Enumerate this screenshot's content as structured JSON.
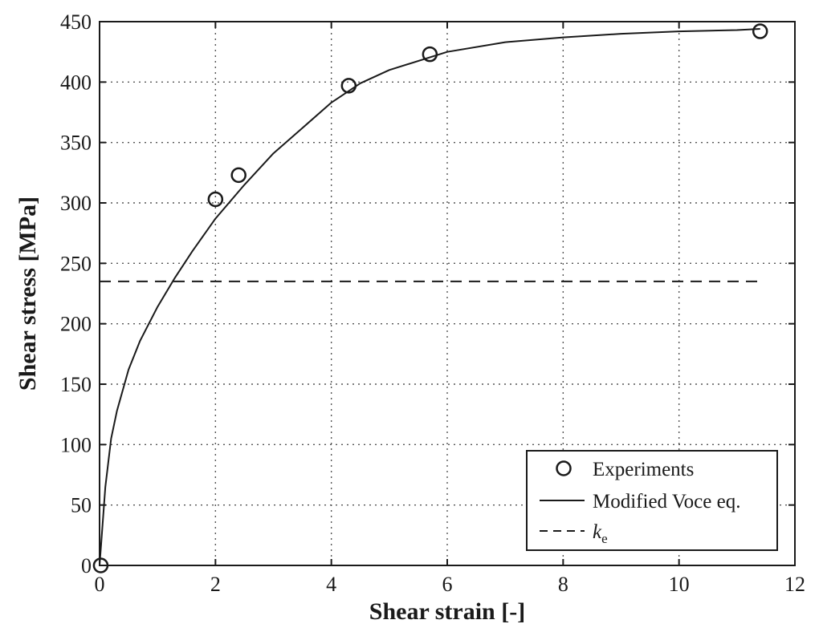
{
  "chart_data": {
    "type": "line",
    "title": "",
    "xlabel": "Shear strain [-]",
    "ylabel": "Shear stress [MPa]",
    "xlim": [
      0,
      12
    ],
    "ylim": [
      0,
      450
    ],
    "xticks": [
      0,
      2,
      4,
      6,
      8,
      10,
      12
    ],
    "yticks": [
      0,
      50,
      100,
      150,
      200,
      250,
      300,
      350,
      400,
      450
    ],
    "grid": true,
    "legend_position": "bottom-right",
    "series": [
      {
        "name": "Experiments",
        "kind": "scatter",
        "marker": "open-circle",
        "x": [
          0.02,
          2.0,
          2.4,
          4.3,
          5.7,
          11.4
        ],
        "y": [
          0,
          303,
          323,
          397,
          423,
          442
        ]
      },
      {
        "name": "Modified Voce eq.",
        "kind": "line",
        "style": "solid",
        "x": [
          0,
          0.1,
          0.2,
          0.3,
          0.5,
          0.7,
          1.0,
          1.3,
          1.6,
          2.0,
          2.5,
          3.0,
          3.5,
          4.0,
          4.5,
          5.0,
          6.0,
          7.0,
          8.0,
          9.0,
          10.0,
          11.0,
          11.4
        ],
        "y": [
          0,
          65,
          105,
          128,
          162,
          186,
          214,
          238,
          260,
          287,
          315,
          341,
          362,
          383,
          399,
          410,
          425,
          433,
          437,
          440,
          442,
          443,
          444
        ]
      },
      {
        "name": "k",
        "name_subscript": "e",
        "kind": "line",
        "style": "dashed",
        "x": [
          0,
          11.4
        ],
        "y": [
          235,
          235
        ]
      }
    ]
  },
  "colors": {
    "ink": "#1a1a1a",
    "grid": "#555555",
    "background": "#ffffff"
  }
}
